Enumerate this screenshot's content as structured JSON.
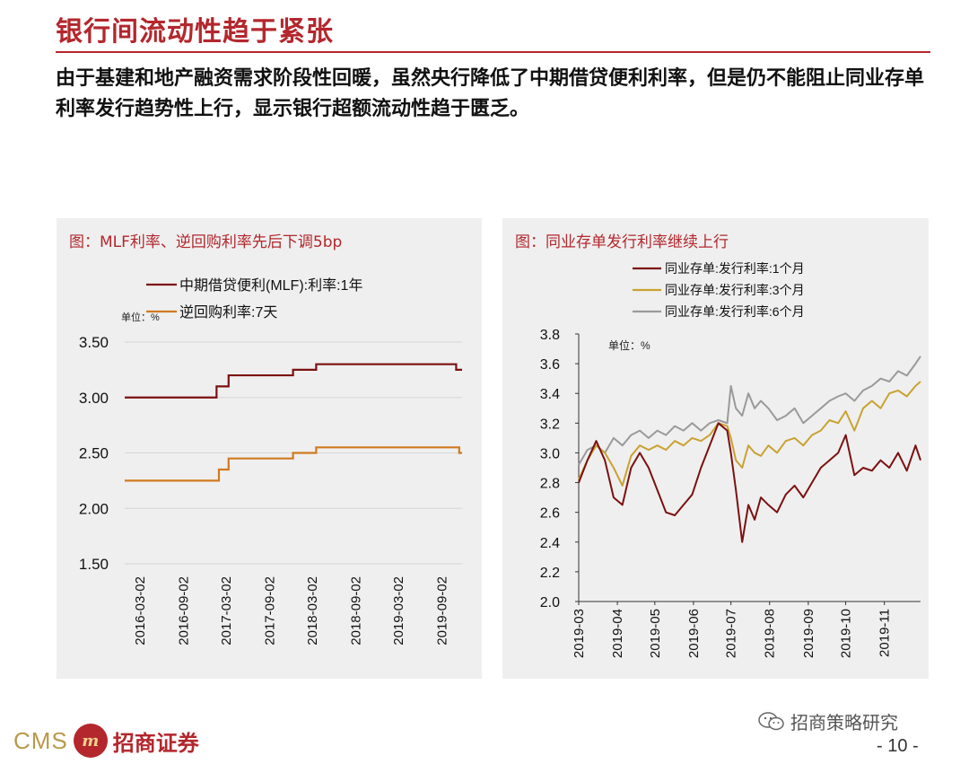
{
  "header": {
    "title": "银行间流动性趋于紧张",
    "description": "由于基建和地产融资需求阶段性回暖，虽然央行降低了中期借贷便利利率，但是仍不能阻止同业存单利率发行趋势性上行，显示银行超额流动性趋于匮乏。"
  },
  "footer": {
    "logo_text": "CMS",
    "badge_text": "m",
    "brand": "招商证券",
    "wechat": "招商策略研究",
    "page": "- 10 -"
  },
  "colors": {
    "title_red": "#b3272d",
    "mlf": "#7b1111",
    "repo": "#d07a1f",
    "cd1m": "#7b1111",
    "cd3m": "#c9a232",
    "cd6m": "#9a9a9a",
    "panel_bg": "#efefef"
  },
  "chart_data": [
    {
      "type": "line",
      "title": "图：MLF利率、逆回购利率先后下调5bp",
      "unit_label": "单位：%",
      "ylim": [
        1.5,
        3.5
      ],
      "yticks": [
        1.5,
        2.0,
        2.5,
        3.0,
        3.5
      ],
      "ytick_labels": [
        "1.50",
        "2.00",
        "2.50",
        "3.00",
        "3.50"
      ],
      "x_range": [
        "2016-01-01",
        "2019-11-30"
      ],
      "xtick_labels": [
        "2016-03-02",
        "2016-09-02",
        "2017-03-02",
        "2017-09-02",
        "2018-03-02",
        "2018-09-02",
        "2019-03-02",
        "2019-09-02"
      ],
      "grid": true,
      "legend_position": "top",
      "series": [
        {
          "name": "中期借贷便利(MLF):利率:1年",
          "x": [
            "2016-01-01",
            "2017-01-24",
            "2017-03-16",
            "2017-12-14",
            "2018-03-22",
            "2019-11-05",
            "2019-11-30"
          ],
          "y": [
            3.0,
            3.1,
            3.2,
            3.25,
            3.3,
            3.25,
            3.25
          ]
        },
        {
          "name": "逆回购利率:7天",
          "x": [
            "2016-01-01",
            "2017-02-03",
            "2017-03-16",
            "2017-12-14",
            "2018-03-22",
            "2019-11-18",
            "2019-11-30"
          ],
          "y": [
            2.25,
            2.35,
            2.45,
            2.5,
            2.55,
            2.5,
            2.5
          ]
        }
      ]
    },
    {
      "type": "line",
      "title": "图：同业存单发行利率继续上行",
      "unit_label": "单位：%",
      "ylim": [
        2.0,
        3.8
      ],
      "yticks": [
        2.0,
        2.2,
        2.4,
        2.6,
        2.8,
        3.0,
        3.2,
        3.4,
        3.6,
        3.8
      ],
      "ytick_labels": [
        "2.0",
        "2.2",
        "2.4",
        "2.6",
        "2.8",
        "3.0",
        "3.2",
        "3.4",
        "3.6",
        "3.8"
      ],
      "x_range": [
        "2019-03-01",
        "2019-11-30"
      ],
      "xtick_labels": [
        "2019-03",
        "2019-04",
        "2019-05",
        "2019-06",
        "2019-07",
        "2019-08",
        "2019-09",
        "2019-10",
        "2019-11"
      ],
      "grid": false,
      "legend_position": "top",
      "series": [
        {
          "name": "同业存单:发行利率:1个月",
          "x": [
            "2019-03-01",
            "2019-03-08",
            "2019-03-15",
            "2019-03-22",
            "2019-03-29",
            "2019-04-05",
            "2019-04-12",
            "2019-04-19",
            "2019-04-26",
            "2019-05-03",
            "2019-05-10",
            "2019-05-17",
            "2019-05-24",
            "2019-05-31",
            "2019-06-07",
            "2019-06-14",
            "2019-06-21",
            "2019-06-28",
            "2019-07-01",
            "2019-07-05",
            "2019-07-10",
            "2019-07-15",
            "2019-07-20",
            "2019-07-25",
            "2019-07-31",
            "2019-08-07",
            "2019-08-14",
            "2019-08-21",
            "2019-08-28",
            "2019-09-04",
            "2019-09-11",
            "2019-09-18",
            "2019-09-25",
            "2019-10-01",
            "2019-10-08",
            "2019-10-15",
            "2019-10-22",
            "2019-10-29",
            "2019-11-05",
            "2019-11-12",
            "2019-11-19",
            "2019-11-26",
            "2019-11-30"
          ],
          "y": [
            2.8,
            2.95,
            3.08,
            2.95,
            2.7,
            2.65,
            2.9,
            3.0,
            2.9,
            2.75,
            2.6,
            2.58,
            2.65,
            2.72,
            2.9,
            3.05,
            3.2,
            3.15,
            3.0,
            2.75,
            2.4,
            2.65,
            2.55,
            2.7,
            2.65,
            2.6,
            2.72,
            2.78,
            2.7,
            2.8,
            2.9,
            2.95,
            3.0,
            3.12,
            2.85,
            2.9,
            2.88,
            2.95,
            2.9,
            3.0,
            2.88,
            3.05,
            2.95
          ]
        },
        {
          "name": "同业存单:发行利率:3个月",
          "x": [
            "2019-03-01",
            "2019-03-08",
            "2019-03-15",
            "2019-03-22",
            "2019-03-29",
            "2019-04-05",
            "2019-04-12",
            "2019-04-19",
            "2019-04-26",
            "2019-05-03",
            "2019-05-10",
            "2019-05-17",
            "2019-05-24",
            "2019-05-31",
            "2019-06-07",
            "2019-06-14",
            "2019-06-21",
            "2019-06-28",
            "2019-07-01",
            "2019-07-05",
            "2019-07-10",
            "2019-07-15",
            "2019-07-20",
            "2019-07-25",
            "2019-07-31",
            "2019-08-07",
            "2019-08-14",
            "2019-08-21",
            "2019-08-28",
            "2019-09-04",
            "2019-09-11",
            "2019-09-18",
            "2019-09-25",
            "2019-10-01",
            "2019-10-08",
            "2019-10-15",
            "2019-10-22",
            "2019-10-29",
            "2019-11-05",
            "2019-11-12",
            "2019-11-19",
            "2019-11-26",
            "2019-11-30"
          ],
          "y": [
            2.82,
            2.95,
            3.05,
            3.0,
            2.9,
            2.78,
            2.98,
            3.05,
            3.02,
            3.05,
            3.02,
            3.08,
            3.05,
            3.1,
            3.08,
            3.12,
            3.2,
            3.18,
            3.1,
            2.95,
            2.9,
            3.05,
            3.0,
            2.98,
            3.05,
            3.0,
            3.08,
            3.1,
            3.05,
            3.12,
            3.15,
            3.22,
            3.2,
            3.28,
            3.15,
            3.3,
            3.35,
            3.3,
            3.4,
            3.42,
            3.38,
            3.45,
            3.48
          ]
        },
        {
          "name": "同业存单:发行利率:6个月",
          "x": [
            "2019-03-01",
            "2019-03-08",
            "2019-03-15",
            "2019-03-22",
            "2019-03-29",
            "2019-04-05",
            "2019-04-12",
            "2019-04-19",
            "2019-04-26",
            "2019-05-03",
            "2019-05-10",
            "2019-05-17",
            "2019-05-24",
            "2019-05-31",
            "2019-06-07",
            "2019-06-14",
            "2019-06-21",
            "2019-06-28",
            "2019-07-01",
            "2019-07-05",
            "2019-07-10",
            "2019-07-15",
            "2019-07-20",
            "2019-07-25",
            "2019-07-31",
            "2019-08-07",
            "2019-08-14",
            "2019-08-21",
            "2019-08-28",
            "2019-09-04",
            "2019-09-11",
            "2019-09-18",
            "2019-09-25",
            "2019-10-01",
            "2019-10-08",
            "2019-10-15",
            "2019-10-22",
            "2019-10-29",
            "2019-11-05",
            "2019-11-12",
            "2019-11-19",
            "2019-11-26",
            "2019-11-30"
          ],
          "y": [
            2.92,
            3.02,
            3.05,
            3.0,
            3.1,
            3.05,
            3.12,
            3.15,
            3.1,
            3.15,
            3.12,
            3.18,
            3.15,
            3.2,
            3.15,
            3.2,
            3.22,
            3.2,
            3.45,
            3.3,
            3.25,
            3.4,
            3.3,
            3.35,
            3.3,
            3.22,
            3.25,
            3.3,
            3.2,
            3.25,
            3.3,
            3.35,
            3.38,
            3.4,
            3.35,
            3.42,
            3.45,
            3.5,
            3.48,
            3.55,
            3.52,
            3.6,
            3.65
          ]
        }
      ]
    }
  ]
}
